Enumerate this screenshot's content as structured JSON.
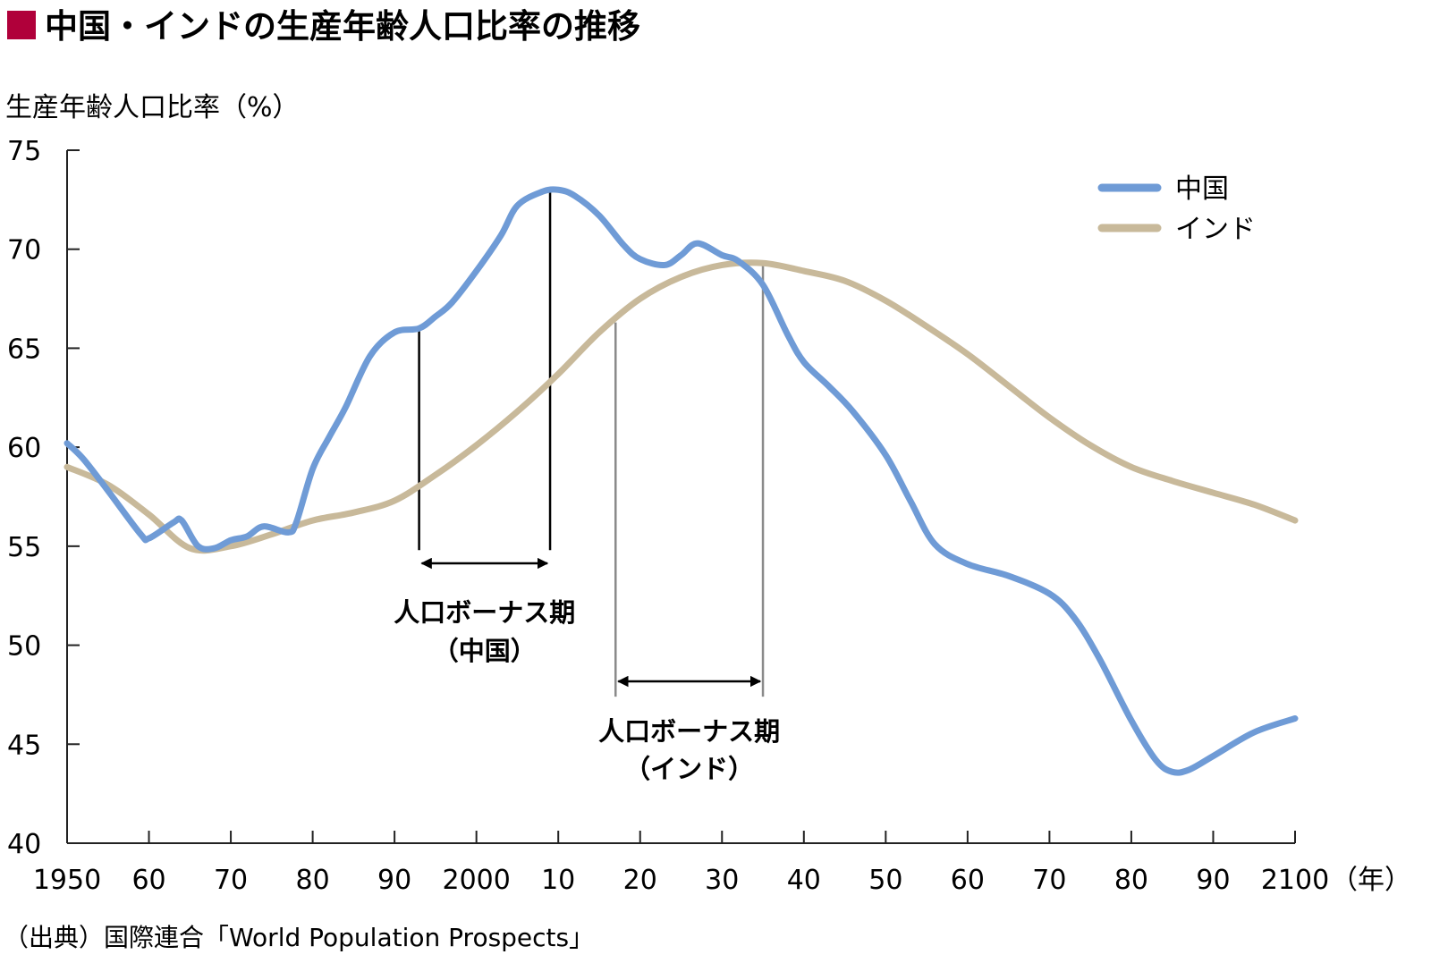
{
  "chart_data": {
    "type": "line",
    "title": "中国・インドの生産年齢人口比率の推移",
    "title_marker_color": "#b0003a",
    "ylabel": "生産年齢人口比率（%）",
    "xlabel_unit": "（年）",
    "xlim": [
      1950,
      2100
    ],
    "ylim": [
      40,
      75
    ],
    "grid": false,
    "legend_position": "top-right",
    "x_tick_values": [
      1950,
      1960,
      1970,
      1980,
      1990,
      2000,
      2010,
      2020,
      2030,
      2040,
      2050,
      2060,
      2070,
      2080,
      2090,
      2100
    ],
    "x_tick_labels": [
      "1950",
      "60",
      "70",
      "80",
      "90",
      "2000",
      "10",
      "20",
      "30",
      "40",
      "50",
      "60",
      "70",
      "80",
      "90",
      "2100"
    ],
    "y_tick_values": [
      40,
      45,
      50,
      55,
      60,
      65,
      70,
      75
    ],
    "y_tick_labels": [
      "40",
      "45",
      "50",
      "55",
      "60",
      "65",
      "70",
      "75"
    ],
    "series": [
      {
        "name": "中国",
        "color": "#6f9bd6",
        "x": [
          1950,
          1952,
          1955,
          1959,
          1960,
          1963,
          1964,
          1966,
          1968,
          1970,
          1972,
          1974,
          1977,
          1978,
          1980,
          1982,
          1984,
          1987,
          1990,
          1993,
          1995,
          1997,
          2000,
          2003,
          2005,
          2008,
          2010,
          2012,
          2015,
          2018,
          2020,
          2023,
          2025,
          2027,
          2030,
          2032,
          2035,
          2038,
          2040,
          2043,
          2046,
          2050,
          2053,
          2056,
          2060,
          2065,
          2070,
          2073,
          2076,
          2080,
          2083,
          2085,
          2087,
          2090,
          2095,
          2100
        ],
        "y": [
          60.2,
          59.4,
          57.8,
          55.6,
          55.4,
          56.2,
          56.3,
          55.0,
          54.9,
          55.3,
          55.5,
          56.0,
          55.7,
          56.2,
          58.9,
          60.5,
          62.0,
          64.6,
          65.8,
          66.0,
          66.6,
          67.3,
          68.9,
          70.7,
          72.2,
          72.9,
          73.0,
          72.7,
          71.7,
          70.2,
          69.5,
          69.2,
          69.7,
          70.3,
          69.7,
          69.4,
          68.2,
          65.7,
          64.3,
          63.1,
          61.8,
          59.6,
          57.3,
          55.1,
          54.1,
          53.5,
          52.6,
          51.4,
          49.4,
          46.2,
          44.2,
          43.6,
          43.7,
          44.4,
          45.6,
          46.3
        ]
      },
      {
        "name": "インド",
        "color": "#c8b99a",
        "x": [
          1950,
          1955,
          1960,
          1965,
          1970,
          1975,
          1980,
          1985,
          1990,
          1995,
          2000,
          2005,
          2010,
          2015,
          2020,
          2025,
          2030,
          2035,
          2040,
          2045,
          2050,
          2055,
          2060,
          2065,
          2070,
          2075,
          2080,
          2085,
          2090,
          2095,
          2100
        ],
        "y": [
          59.0,
          58.1,
          56.6,
          54.9,
          55.0,
          55.6,
          56.3,
          56.7,
          57.3,
          58.6,
          60.1,
          61.8,
          63.7,
          65.8,
          67.5,
          68.6,
          69.2,
          69.3,
          68.9,
          68.4,
          67.4,
          66.1,
          64.7,
          63.1,
          61.5,
          60.1,
          59.0,
          58.3,
          57.7,
          57.1,
          56.3
        ]
      }
    ],
    "annotations": [
      {
        "label": "人口ボーナス期",
        "sublabel": "（中国）",
        "start": 1993,
        "end": 2009,
        "line_color": "#000000"
      },
      {
        "label": "人口ボーナス期",
        "sublabel": "（インド）",
        "start": 2017,
        "end": 2035,
        "line_color": "#8a8a8a"
      }
    ],
    "source": "（出典）国際連合「World Population Prospects」"
  }
}
